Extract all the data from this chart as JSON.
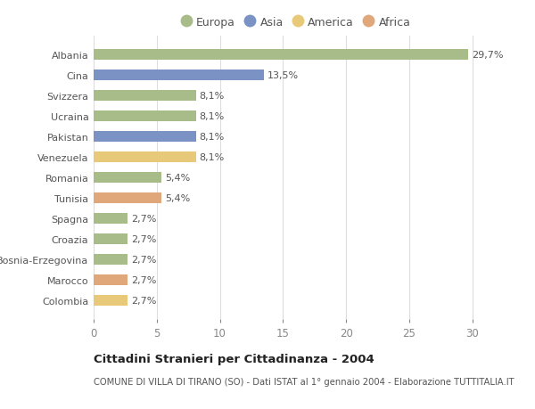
{
  "categories": [
    "Albania",
    "Cina",
    "Svizzera",
    "Ucraina",
    "Pakistan",
    "Venezuela",
    "Romania",
    "Tunisia",
    "Spagna",
    "Croazia",
    "Bosnia-Erzegovina",
    "Marocco",
    "Colombia"
  ],
  "values": [
    29.7,
    13.5,
    8.1,
    8.1,
    8.1,
    8.1,
    5.4,
    5.4,
    2.7,
    2.7,
    2.7,
    2.7,
    2.7
  ],
  "labels": [
    "29,7%",
    "13,5%",
    "8,1%",
    "8,1%",
    "8,1%",
    "8,1%",
    "5,4%",
    "5,4%",
    "2,7%",
    "2,7%",
    "2,7%",
    "2,7%",
    "2,7%"
  ],
  "colors": [
    "#a8bc8a",
    "#7b93c4",
    "#a8bc8a",
    "#a8bc8a",
    "#7b93c4",
    "#e8c97a",
    "#a8bc8a",
    "#e0a87a",
    "#a8bc8a",
    "#a8bc8a",
    "#a8bc8a",
    "#e0a87a",
    "#e8c97a"
  ],
  "legend_labels": [
    "Europa",
    "Asia",
    "America",
    "Africa"
  ],
  "legend_colors": [
    "#a8bc8a",
    "#7b93c4",
    "#e8c97a",
    "#e0a87a"
  ],
  "title": "Cittadini Stranieri per Cittadinanza - 2004",
  "subtitle": "COMUNE DI VILLA DI TIRANO (SO) - Dati ISTAT al 1° gennaio 2004 - Elaborazione TUTTITALIA.IT",
  "xlim": [
    0,
    32
  ],
  "xticks": [
    0,
    5,
    10,
    15,
    20,
    25,
    30
  ],
  "bg_color": "#ffffff",
  "grid_color": "#dddddd",
  "bar_height": 0.55,
  "label_fontsize": 8.0,
  "ytick_fontsize": 8.0,
  "xtick_fontsize": 8.5
}
